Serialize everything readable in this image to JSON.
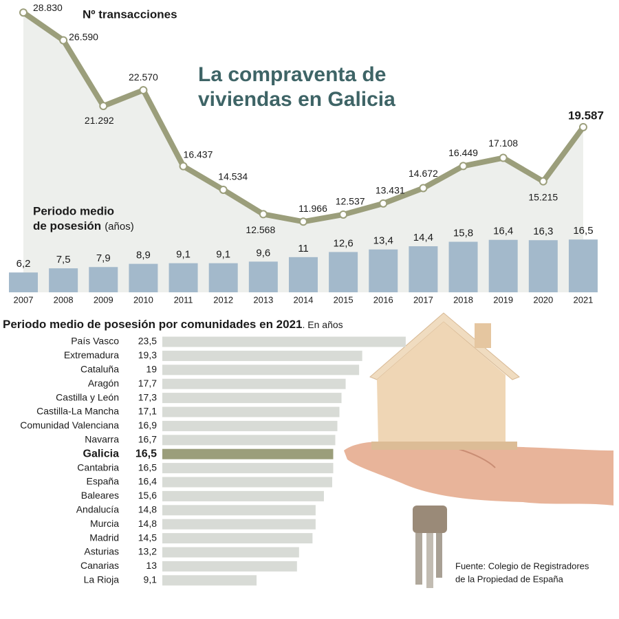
{
  "title": [
    "La compraventa de",
    "viviendas en Galicia"
  ],
  "source": [
    "Fuente: Colegio de Registradores",
    "de la Propiedad de España"
  ],
  "chart_data": [
    {
      "type": "line",
      "title": "Nº transacciones",
      "color": "#9b9e7b",
      "values": [
        28830,
        26590,
        21292,
        22570,
        16437,
        14534,
        12568,
        11966,
        12537,
        13431,
        14672,
        16449,
        17108,
        15215,
        19587
      ],
      "value_labels": [
        "28.830",
        "26.590",
        "21.292",
        "22.570",
        "16.437",
        "14.534",
        "12.568",
        "11.966",
        "12.537",
        "13.431",
        "14.672",
        "16.449",
        "17.108",
        "15.215",
        "19.587"
      ]
    },
    {
      "type": "bar",
      "title": "Periodo medio",
      "title2": "de posesión",
      "unit": "(años)",
      "color": "#a3b9cb",
      "categories": [
        "2007",
        "2008",
        "2009",
        "2010",
        "2011",
        "2012",
        "2013",
        "2014",
        "2015",
        "2016",
        "2017",
        "2018",
        "2019",
        "2020",
        "2021"
      ],
      "values": [
        6.2,
        7.5,
        7.9,
        8.9,
        9.1,
        9.1,
        9.6,
        11,
        12.6,
        13.4,
        14.4,
        15.8,
        16.4,
        16.3,
        16.5
      ],
      "value_labels": [
        "6,2",
        "7,5",
        "7,9",
        "8,9",
        "9,1",
        "9,1",
        "9,6",
        "11",
        "12,6",
        "13,4",
        "14,4",
        "15,8",
        "16,4",
        "16,3",
        "16,5"
      ]
    },
    {
      "type": "hbar",
      "title": "Periodo medio de posesión por comunidades en 2021",
      "subtitle": ". En años",
      "categories": [
        "País Vasco",
        "Extremadura",
        "Cataluña",
        "Aragón",
        "Castilla y León",
        "Castilla-La Mancha",
        "Comunidad Valenciana",
        "Navarra",
        "Galicia",
        "Cantabria",
        "España",
        "Baleares",
        "Andalucía",
        "Murcia",
        "Madrid",
        "Asturias",
        "Canarias",
        "La Rioja"
      ],
      "values": [
        23.5,
        19.3,
        19,
        17.7,
        17.3,
        17.1,
        16.9,
        16.7,
        16.5,
        16.5,
        16.4,
        15.6,
        14.8,
        14.8,
        14.5,
        13.2,
        13,
        9.1
      ],
      "value_labels": [
        "23,5",
        "19,3",
        "19",
        "17,7",
        "17,3",
        "17,1",
        "16,9",
        "16,7",
        "16,5",
        "16,5",
        "16,4",
        "15,6",
        "14,8",
        "14,8",
        "14,5",
        "13,2",
        "13",
        "9,1"
      ],
      "colors": [
        "#d8dbd6",
        "#d8dbd6",
        "#d8dbd6",
        "#d8dbd6",
        "#d8dbd6",
        "#d8dbd6",
        "#d8dbd6",
        "#d8dbd6",
        "#9b9e7b",
        "#d8dbd6",
        "#d8dbd6",
        "#d8dbd6",
        "#d8dbd6",
        "#d8dbd6",
        "#d8dbd6",
        "#d8dbd6",
        "#d8dbd6",
        "#d8dbd6"
      ]
    }
  ]
}
